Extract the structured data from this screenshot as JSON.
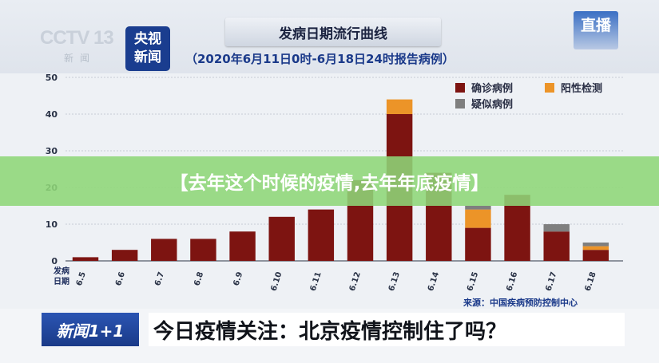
{
  "header": {
    "cctv_logo": "CCTV 13",
    "cctv_sub": "新闻",
    "news_badge_line1": "央视",
    "news_badge_line2": "新闻",
    "live_badge": "直播"
  },
  "overlay": {
    "caption": "【去年这个时候的疫情,去年年底疫情】"
  },
  "ticker": {
    "badge": "新闻1+1",
    "headline": "今日疫情关注：北京疫情控制住了吗？"
  },
  "chart_data": {
    "type": "bar",
    "stacked": true,
    "title": "发病日期流行曲线",
    "subtitle": "（2020年6月11日0时-6月18日24时报告病例）",
    "xlabel": "发病日期",
    "ylabel": "",
    "source": "来源：中国疾病预防控制中心",
    "categories": [
      "6.5",
      "6.6",
      "6.7",
      "6.8",
      "6.9",
      "6.10",
      "6.11",
      "6.12",
      "6.13",
      "6.14",
      "6.15",
      "6.16",
      "6.17",
      "6.18"
    ],
    "series": [
      {
        "name": "确诊病例",
        "color": "#7d1411",
        "values": [
          1,
          3,
          6,
          6,
          8,
          12,
          14,
          22,
          40,
          24,
          9,
          18,
          8,
          3
        ]
      },
      {
        "name": "阳性检测",
        "color": "#ec9428",
        "values": [
          0,
          0,
          0,
          0,
          0,
          0,
          0,
          0,
          4,
          0,
          5,
          0,
          0,
          1
        ]
      },
      {
        "name": "疑似病例",
        "color": "#7f7f7f",
        "values": [
          0,
          0,
          0,
          0,
          0,
          0,
          0,
          0,
          0,
          0,
          1,
          0,
          2,
          1
        ]
      }
    ],
    "ylim": [
      0,
      50
    ],
    "yticks": [
      0,
      10,
      20,
      30,
      40,
      50
    ],
    "grid": true,
    "legend_position": "top-right"
  }
}
